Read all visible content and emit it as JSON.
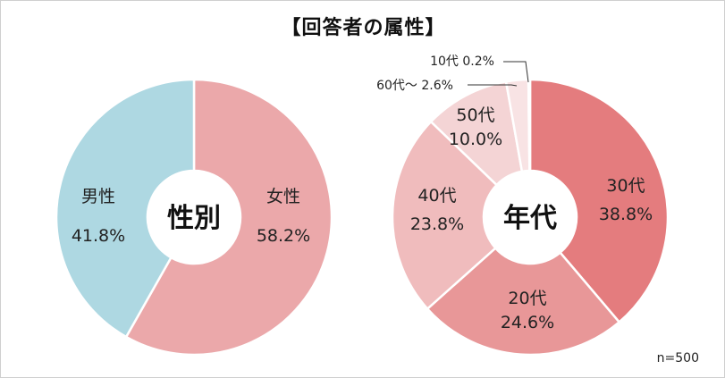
{
  "title": "【回答者の属性】",
  "note": "n=500",
  "chart_data": [
    {
      "type": "pie",
      "center_label": "性別",
      "slices": [
        {
          "name": "女性",
          "value": 58.2,
          "value_label": "58.2%",
          "color": "#eba8aa"
        },
        {
          "name": "男性",
          "value": 41.8,
          "value_label": "41.8%",
          "color": "#aed8e2"
        }
      ]
    },
    {
      "type": "pie",
      "center_label": "年代",
      "slices": [
        {
          "name": "30代",
          "value": 38.8,
          "value_label": "38.8%",
          "color": "#e47c7e"
        },
        {
          "name": "20代",
          "value": 24.6,
          "value_label": "24.6%",
          "color": "#e89798"
        },
        {
          "name": "40代",
          "value": 23.8,
          "value_label": "23.8%",
          "color": "#f0bcbd"
        },
        {
          "name": "50代",
          "value": 10.0,
          "value_label": "10.0%",
          "color": "#f4d4d5"
        },
        {
          "name": "60代～",
          "value": 2.6,
          "value_label": "2.6%",
          "color": "#f8e3e4"
        },
        {
          "name": "10代",
          "value": 0.2,
          "value_label": "0.2%",
          "color": "#fbeeee"
        }
      ]
    }
  ]
}
